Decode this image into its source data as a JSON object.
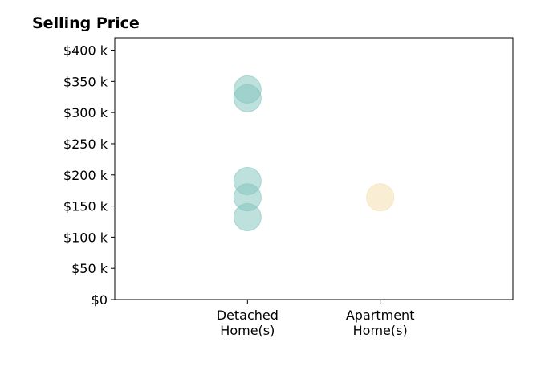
{
  "chart_data": {
    "type": "scatter",
    "title": "Selling Price",
    "xlabel": "",
    "ylabel": "",
    "categories": [
      "Detached\nHome(s)",
      "Apartment\nHome(s)"
    ],
    "xlim": [
      -1,
      2
    ],
    "ylim": [
      0,
      420000
    ],
    "yticks": [
      0,
      50000,
      100000,
      150000,
      200000,
      250000,
      300000,
      350000,
      400000
    ],
    "ytick_labels": [
      "$0",
      "$50 k",
      "$100 k",
      "$150 k",
      "$200 k",
      "$250 k",
      "$300 k",
      "$350 k",
      "$400 k"
    ],
    "grid": false,
    "series": [
      {
        "category": "Detached\nHome(s)",
        "color": "#80c4bb",
        "values": [
          337000,
          323000,
          190000,
          164000,
          132000
        ]
      },
      {
        "category": "Apartment\nHome(s)",
        "color": "#f3dba8",
        "values": [
          164000
        ]
      }
    ]
  }
}
